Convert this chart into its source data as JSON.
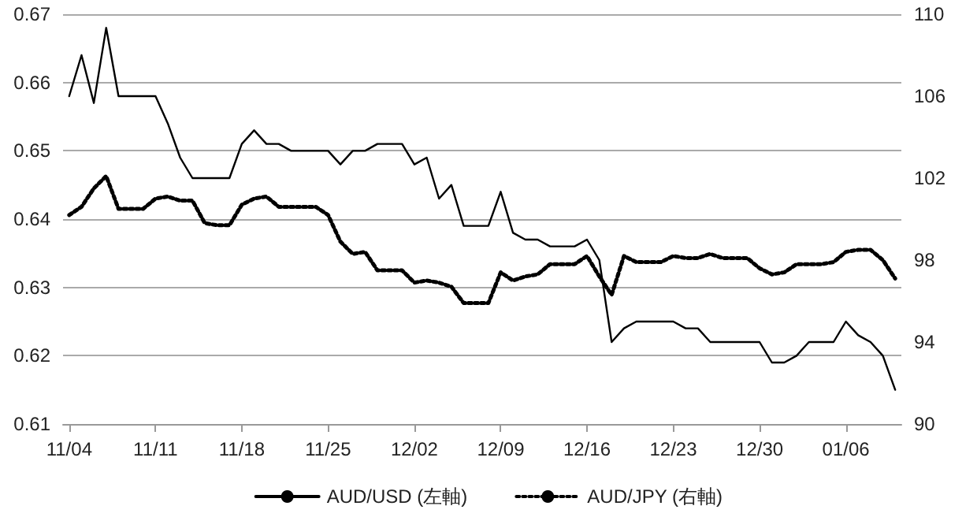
{
  "chart_data": {
    "type": "line",
    "categories": [
      "11/04",
      null,
      null,
      null,
      null,
      null,
      null,
      "11/11",
      null,
      null,
      null,
      null,
      null,
      null,
      "11/18",
      null,
      null,
      null,
      null,
      null,
      null,
      "11/25",
      null,
      null,
      null,
      null,
      null,
      null,
      "12/02",
      null,
      null,
      null,
      null,
      null,
      null,
      "12/09",
      null,
      null,
      null,
      null,
      null,
      null,
      "12/16",
      null,
      null,
      null,
      null,
      null,
      null,
      "12/23",
      null,
      null,
      null,
      null,
      null,
      null,
      "12/30",
      null,
      null,
      null,
      null,
      null,
      null,
      "01/06",
      null,
      null,
      null,
      null
    ],
    "series": [
      {
        "name": "AUD/USD (左軸)",
        "color": "#000000",
        "line_style": "solid",
        "values": [
          0.658,
          0.664,
          0.657,
          0.668,
          0.658,
          0.658,
          0.658,
          0.658,
          0.654,
          0.649,
          0.646,
          0.646,
          0.646,
          0.646,
          0.651,
          0.653,
          0.651,
          0.651,
          0.65,
          0.65,
          0.65,
          0.65,
          0.648,
          0.65,
          0.65,
          0.651,
          0.651,
          0.651,
          0.648,
          0.649,
          0.643,
          0.645,
          0.639,
          0.639,
          0.639,
          0.644,
          0.638,
          0.637,
          0.637,
          0.636,
          0.636,
          0.636,
          0.637,
          0.634,
          0.622,
          0.624,
          0.625,
          0.625,
          0.625,
          0.625,
          0.624,
          0.624,
          0.622,
          0.622,
          0.622,
          0.622,
          0.622,
          0.619,
          0.619,
          0.62,
          0.622,
          0.622,
          0.622,
          0.625,
          0.623,
          0.622,
          0.62,
          0.615
        ]
      },
      {
        "name": "AUD/JPY (右軸)",
        "color": "#000000",
        "line_style": "dotted",
        "axis": "y2",
        "values": [
          100.2,
          100.6,
          101.5,
          102.1,
          100.5,
          100.5,
          100.5,
          101.0,
          101.1,
          100.9,
          100.9,
          99.8,
          99.7,
          99.7,
          100.7,
          101.0,
          101.1,
          100.6,
          100.6,
          100.6,
          100.6,
          100.2,
          98.9,
          98.3,
          98.4,
          97.5,
          97.5,
          97.5,
          96.9,
          97.0,
          96.9,
          96.7,
          95.9,
          95.9,
          95.9,
          97.4,
          97.0,
          97.2,
          97.3,
          97.8,
          97.8,
          97.8,
          98.2,
          97.2,
          96.3,
          98.2,
          97.9,
          97.9,
          97.9,
          98.2,
          98.1,
          98.1,
          98.3,
          98.1,
          98.1,
          98.1,
          97.6,
          97.3,
          97.4,
          97.8,
          97.8,
          97.8,
          97.9,
          98.4,
          98.5,
          98.5,
          98.0,
          97.1
        ]
      }
    ],
    "ylim": [
      0.61,
      0.67
    ],
    "yticks": [
      0.61,
      0.62,
      0.63,
      0.64,
      0.65,
      0.66,
      0.67
    ],
    "y2lim": [
      90,
      110
    ],
    "y2ticks": [
      90,
      94,
      98,
      102,
      106,
      110
    ],
    "grid": "y",
    "legend": "bottom"
  }
}
